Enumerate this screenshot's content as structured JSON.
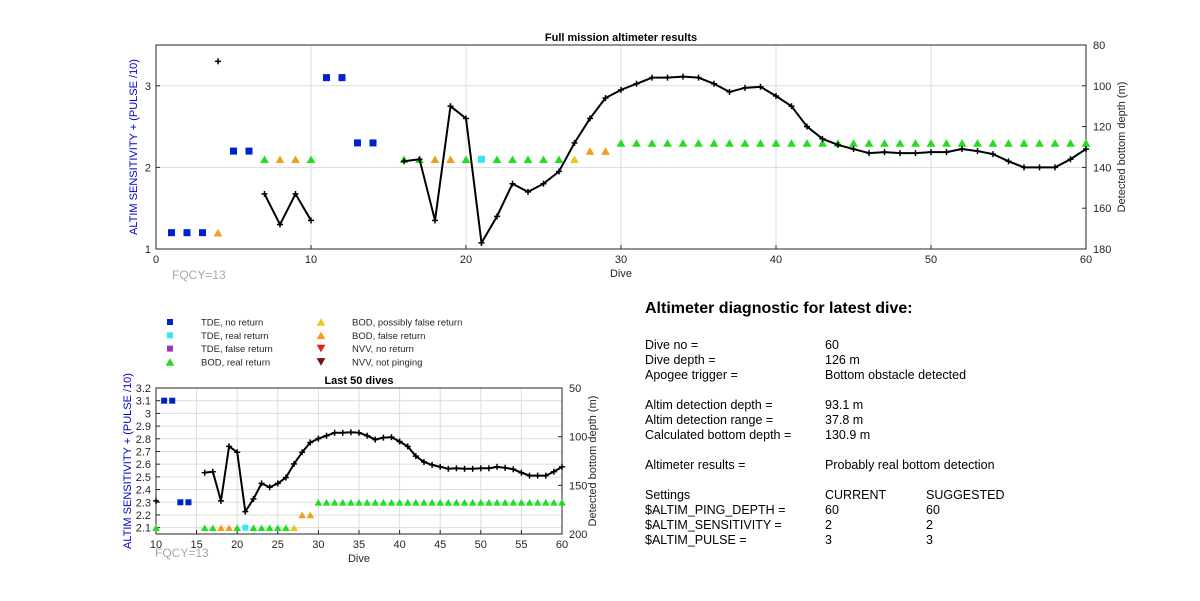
{
  "colors": {
    "tde_no_return": "#0022cc",
    "tde_real_return": "#33e5ff",
    "tde_false_return": "#9933cc",
    "bod_real_return": "#22dd22",
    "bod_possibly_false": "#f0c419",
    "bod_false_return": "#f0a020",
    "nvv_no_return": "#dd2222",
    "nvv_not_pinging": "#7a1010",
    "depth_line": "#000000",
    "left_axis_label": "#0000cc"
  },
  "legend": {
    "items": [
      {
        "label": "TDE, no return",
        "color": "#0022cc",
        "shape": "square"
      },
      {
        "label": "TDE, real return",
        "color": "#33e5ff",
        "shape": "square"
      },
      {
        "label": "TDE, false return",
        "color": "#9933cc",
        "shape": "square"
      },
      {
        "label": "BOD, real return",
        "color": "#22dd22",
        "shape": "triangle-up"
      },
      {
        "label": "BOD, possibly false return",
        "color": "#f0c419",
        "shape": "triangle-up"
      },
      {
        "label": "BOD, false return",
        "color": "#f0a020",
        "shape": "triangle-up"
      },
      {
        "label": "NVV, no return",
        "color": "#dd2222",
        "shape": "triangle-down"
      },
      {
        "label": "NVV, not pinging",
        "color": "#7a1010",
        "shape": "triangle-down"
      }
    ]
  },
  "chart_data": [
    {
      "type": "scatter",
      "title": "Full mission altimeter results",
      "xlabel": "Dive",
      "ylabel": "ALTIM SENSITIVITY + (PULSE /10)",
      "y2label": "Detected bottom depth (m)",
      "xlim": [
        0,
        60
      ],
      "ylim": [
        1,
        3.5
      ],
      "y2lim": [
        180,
        80
      ],
      "y2_reversed": true,
      "xticks": [
        0,
        10,
        20,
        30,
        40,
        50,
        60
      ],
      "yticks": [
        1,
        2,
        3
      ],
      "y2ticks": [
        80,
        100,
        120,
        140,
        160,
        180
      ],
      "annotation": "FQCY=13",
      "tde_no_return": [
        [
          1,
          1.2
        ],
        [
          2,
          1.2
        ],
        [
          3,
          1.2
        ],
        [
          5,
          2.2
        ],
        [
          6,
          2.2
        ],
        [
          11,
          3.1
        ],
        [
          12,
          3.1
        ],
        [
          13,
          2.3
        ],
        [
          14,
          2.3
        ]
      ],
      "tde_real_return": [
        [
          21,
          2.1
        ]
      ],
      "bod_possibly_false": [
        [
          27,
          2.1
        ]
      ],
      "bod_false_return": [
        [
          4,
          1.2
        ],
        [
          8,
          2.1
        ],
        [
          9,
          2.1
        ],
        [
          18,
          2.1
        ],
        [
          19,
          2.1
        ],
        [
          28,
          2.2
        ],
        [
          29,
          2.2
        ]
      ],
      "bod_real_return": [
        [
          7,
          2.1
        ],
        [
          10,
          2.1
        ],
        [
          16,
          2.1
        ],
        [
          17,
          2.1
        ],
        [
          20,
          2.1
        ],
        [
          22,
          2.1
        ],
        [
          23,
          2.1
        ],
        [
          24,
          2.1
        ],
        [
          25,
          2.1
        ],
        [
          26,
          2.1
        ],
        [
          30,
          2.3
        ],
        [
          31,
          2.3
        ],
        [
          32,
          2.3
        ],
        [
          33,
          2.3
        ],
        [
          34,
          2.3
        ],
        [
          35,
          2.3
        ],
        [
          36,
          2.3
        ],
        [
          37,
          2.3
        ],
        [
          38,
          2.3
        ],
        [
          39,
          2.3
        ],
        [
          40,
          2.3
        ],
        [
          41,
          2.3
        ],
        [
          42,
          2.3
        ],
        [
          43,
          2.3
        ],
        [
          44,
          2.3
        ],
        [
          45,
          2.3
        ],
        [
          46,
          2.3
        ],
        [
          47,
          2.3
        ],
        [
          48,
          2.3
        ],
        [
          49,
          2.3
        ],
        [
          50,
          2.3
        ],
        [
          51,
          2.3
        ],
        [
          52,
          2.3
        ],
        [
          53,
          2.3
        ],
        [
          54,
          2.3
        ],
        [
          55,
          2.3
        ],
        [
          56,
          2.3
        ],
        [
          57,
          2.3
        ],
        [
          58,
          2.3
        ],
        [
          59,
          2.3
        ],
        [
          60,
          2.3
        ]
      ],
      "depth_series": [
        [
          [
            4,
            88
          ]
        ],
        [
          [
            7,
            153
          ],
          [
            8,
            168
          ],
          [
            9,
            153
          ],
          [
            10,
            166
          ]
        ],
        [
          [
            16,
            137
          ],
          [
            17,
            136
          ],
          [
            18,
            166
          ],
          [
            19,
            110
          ],
          [
            20,
            116
          ],
          [
            21,
            177
          ],
          [
            22,
            164
          ],
          [
            23,
            148
          ],
          [
            24,
            152
          ],
          [
            25,
            148
          ],
          [
            26,
            142
          ],
          [
            27,
            128
          ],
          [
            28,
            116
          ],
          [
            29,
            106
          ],
          [
            30,
            102
          ],
          [
            31,
            99
          ],
          [
            32,
            96
          ],
          [
            33,
            96
          ],
          [
            34,
            95.5
          ],
          [
            35,
            96
          ],
          [
            36,
            99
          ],
          [
            37,
            103
          ],
          [
            38,
            101
          ],
          [
            39,
            100.5
          ],
          [
            40,
            105
          ],
          [
            41,
            110
          ],
          [
            42,
            120
          ],
          [
            43,
            126
          ],
          [
            44,
            129
          ],
          [
            45,
            131
          ],
          [
            46,
            133
          ],
          [
            47,
            132.5
          ],
          [
            48,
            133
          ],
          [
            49,
            133
          ],
          [
            50,
            132.5
          ],
          [
            51,
            132.5
          ],
          [
            52,
            131
          ],
          [
            53,
            132
          ],
          [
            54,
            133.5
          ],
          [
            55,
            137
          ],
          [
            56,
            140
          ],
          [
            57,
            140
          ],
          [
            58,
            140
          ],
          [
            59,
            136
          ],
          [
            60,
            131
          ]
        ]
      ]
    },
    {
      "type": "scatter",
      "title": "Last 50 dives",
      "xlabel": "Dive",
      "ylabel": "ALTIM SENSITIVITY + (PULSE /10)",
      "y2label": "Detected bottom depth (m)",
      "xlim": [
        10,
        60
      ],
      "ylim": [
        2.05,
        3.2
      ],
      "y2lim": [
        200,
        50
      ],
      "y2_reversed": true,
      "xticks": [
        10,
        15,
        20,
        25,
        30,
        35,
        40,
        45,
        50,
        55,
        60
      ],
      "yticks": [
        2.1,
        2.2,
        2.3,
        2.4,
        2.5,
        2.6,
        2.7,
        2.8,
        2.9,
        3,
        3.1,
        3.2
      ],
      "y2ticks": [
        50,
        100,
        150,
        200
      ],
      "annotation": "FQCY=13",
      "tde_no_return": [
        [
          11,
          3.1
        ],
        [
          12,
          3.1
        ],
        [
          13,
          2.3
        ],
        [
          14,
          2.3
        ]
      ],
      "tde_real_return": [
        [
          21,
          2.1
        ]
      ],
      "bod_possibly_false": [
        [
          27,
          2.1
        ]
      ],
      "bod_false_return": [
        [
          18,
          2.1
        ],
        [
          19,
          2.1
        ],
        [
          28,
          2.2
        ],
        [
          29,
          2.2
        ]
      ],
      "bod_real_return": [
        [
          10,
          2.1
        ],
        [
          16,
          2.1
        ],
        [
          17,
          2.1
        ],
        [
          20,
          2.1
        ],
        [
          22,
          2.1
        ],
        [
          23,
          2.1
        ],
        [
          24,
          2.1
        ],
        [
          25,
          2.1
        ],
        [
          26,
          2.1
        ],
        [
          30,
          2.3
        ],
        [
          31,
          2.3
        ],
        [
          32,
          2.3
        ],
        [
          33,
          2.3
        ],
        [
          34,
          2.3
        ],
        [
          35,
          2.3
        ],
        [
          36,
          2.3
        ],
        [
          37,
          2.3
        ],
        [
          38,
          2.3
        ],
        [
          39,
          2.3
        ],
        [
          40,
          2.3
        ],
        [
          41,
          2.3
        ],
        [
          42,
          2.3
        ],
        [
          43,
          2.3
        ],
        [
          44,
          2.3
        ],
        [
          45,
          2.3
        ],
        [
          46,
          2.3
        ],
        [
          47,
          2.3
        ],
        [
          48,
          2.3
        ],
        [
          49,
          2.3
        ],
        [
          50,
          2.3
        ],
        [
          51,
          2.3
        ],
        [
          52,
          2.3
        ],
        [
          53,
          2.3
        ],
        [
          54,
          2.3
        ],
        [
          55,
          2.3
        ],
        [
          56,
          2.3
        ],
        [
          57,
          2.3
        ],
        [
          58,
          2.3
        ],
        [
          59,
          2.3
        ],
        [
          60,
          2.3
        ]
      ],
      "depth_series": [
        [
          [
            10,
            166
          ]
        ],
        [
          [
            16,
            137
          ],
          [
            17,
            136
          ],
          [
            18,
            166
          ],
          [
            19,
            110
          ],
          [
            20,
            116
          ],
          [
            21,
            177
          ],
          [
            22,
            164
          ],
          [
            23,
            148
          ],
          [
            24,
            152
          ],
          [
            25,
            148
          ],
          [
            26,
            142
          ],
          [
            27,
            128
          ],
          [
            28,
            116
          ],
          [
            29,
            106
          ],
          [
            30,
            102
          ],
          [
            31,
            99
          ],
          [
            32,
            96
          ],
          [
            33,
            96
          ],
          [
            34,
            95.5
          ],
          [
            35,
            96
          ],
          [
            36,
            99
          ],
          [
            37,
            103
          ],
          [
            38,
            101
          ],
          [
            39,
            100.5
          ],
          [
            40,
            105
          ],
          [
            41,
            110
          ],
          [
            42,
            120
          ],
          [
            43,
            126
          ],
          [
            44,
            129
          ],
          [
            45,
            131
          ],
          [
            46,
            133
          ],
          [
            47,
            132.5
          ],
          [
            48,
            133
          ],
          [
            49,
            133
          ],
          [
            50,
            132.5
          ],
          [
            51,
            132.5
          ],
          [
            52,
            131
          ],
          [
            53,
            132
          ],
          [
            54,
            133.5
          ],
          [
            55,
            137
          ],
          [
            56,
            140
          ],
          [
            57,
            140
          ],
          [
            58,
            140
          ],
          [
            59,
            136
          ],
          [
            60,
            131
          ]
        ]
      ]
    }
  ],
  "diagnostic": {
    "title": "Altimeter diagnostic for latest dive:",
    "dive_no_label": "Dive no =",
    "dive_no": "60",
    "dive_depth_label": "Dive depth =",
    "dive_depth": "126 m",
    "apogee_label": "Apogee trigger =",
    "apogee": "Bottom obstacle detected",
    "altim_depth_label": "Altim detection depth =",
    "altim_depth": "93.1 m",
    "altim_range_label": "Altim detection range =",
    "altim_range": "37.8 m",
    "calc_depth_label": "Calculated bottom depth =",
    "calc_depth": "130.9 m",
    "results_label": "Altimeter results =",
    "results": "Probably real bottom detection",
    "settings_label": "Settings",
    "current_label": "CURRENT",
    "suggested_label": "SUGGESTED",
    "settings": [
      {
        "name": "$ALTIM_PING_DEPTH =",
        "current": "60",
        "suggested": "60"
      },
      {
        "name": "$ALTIM_SENSITIVITY =",
        "current": "2",
        "suggested": "2"
      },
      {
        "name": "$ALTIM_PULSE =",
        "current": "3",
        "suggested": "3"
      }
    ]
  }
}
